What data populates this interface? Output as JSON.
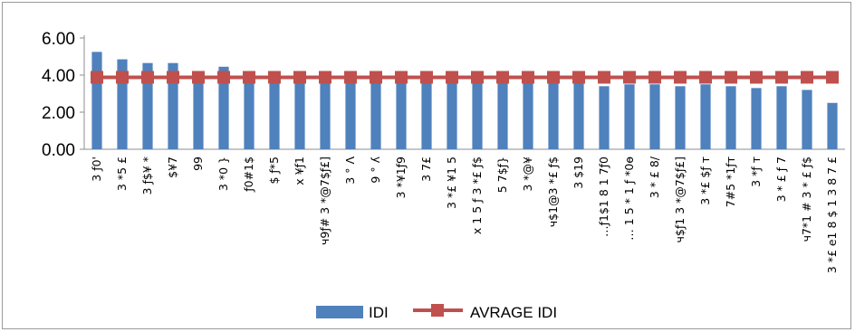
{
  "chart_data": {
    "type": "bar",
    "categories": [
      "3 ƒ0'",
      "3 *5 £",
      "3 ƒ$¥ *",
      "$¥7",
      "99",
      "3 *0 }",
      "ƒ0#1$",
      "$ ƒ*5",
      "x ¥ƒ1",
      "ч9ƒ# 3 *@7$ƒ£]",
      "3 ° Λ",
      "9 ° ʎ",
      "3 *¥1ƒ9",
      "3 7£",
      "3 *£ ¥1 5",
      "x 1 5 ƒ 3 *£ ƒ$",
      "5 7$ƒ}",
      "3 *@¥",
      "ч$1@3 *£ ƒ$",
      "3 $19",
      "…ƒ1$1 8 1 7ƒ0",
      "… 1 5 * 1 ƒ *0ɵ",
      "3 * £ 8/",
      "ч$ƒ1 3 *@7$ƒ£]",
      "3 *£ $ƒ т",
      "7#5 *1ƒт",
      "3 *ƒ т",
      "3 * £ ƒ 7",
      "ч7*1 # 3 * £ ƒ$",
      "3 *£ е1 8 $ 1 3 8 7 £"
    ],
    "series": [
      {
        "name": "IDI",
        "kind": "bar",
        "color": "#4f81bd",
        "values": [
          5.25,
          4.85,
          4.65,
          4.65,
          4.0,
          4.45,
          4.0,
          4.0,
          3.9,
          4.0,
          4.0,
          3.95,
          3.9,
          3.9,
          3.9,
          3.8,
          3.9,
          3.9,
          4.0,
          3.9,
          3.4,
          3.5,
          3.5,
          3.4,
          3.5,
          3.4,
          3.3,
          3.4,
          3.2,
          2.5
        ]
      },
      {
        "name": "AVRAGE IDI",
        "kind": "line",
        "color": "#c0504d",
        "marker": "square",
        "values": [
          3.88,
          3.88,
          3.88,
          3.88,
          3.88,
          3.88,
          3.88,
          3.88,
          3.88,
          3.88,
          3.88,
          3.88,
          3.88,
          3.88,
          3.88,
          3.88,
          3.88,
          3.88,
          3.88,
          3.88,
          3.88,
          3.88,
          3.88,
          3.88,
          3.88,
          3.88,
          3.88,
          3.88,
          3.88,
          3.88
        ]
      }
    ],
    "yticks": [
      "0.00",
      "2.00",
      "4.00",
      "6.00"
    ],
    "ylim": [
      0,
      6
    ],
    "grid": false,
    "legend_position": "bottom",
    "legend": [
      "IDI",
      "AVRAGE IDI"
    ]
  }
}
